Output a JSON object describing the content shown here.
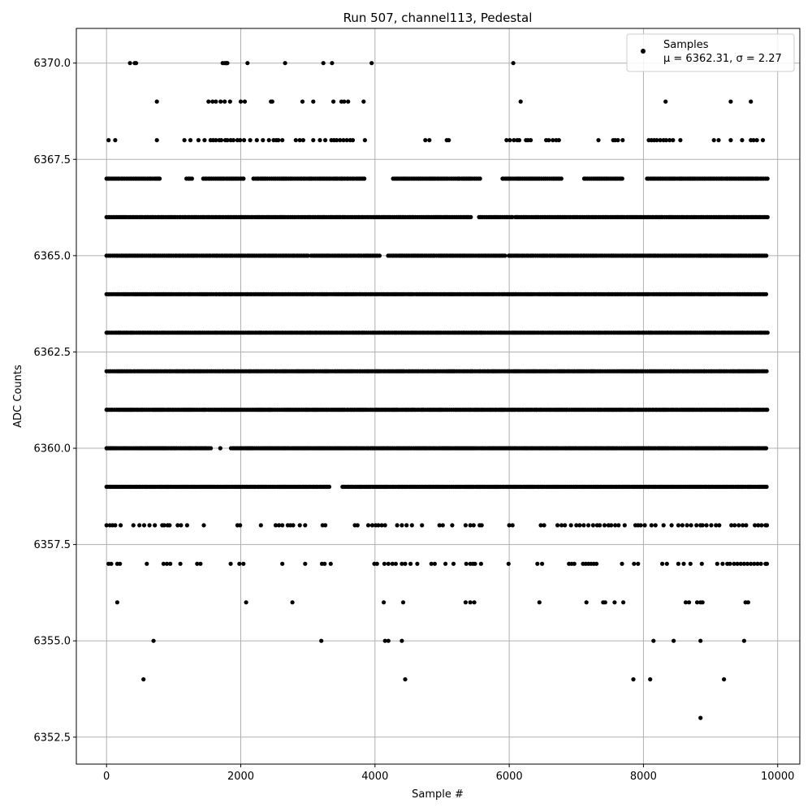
{
  "chart_data": {
    "type": "scatter",
    "title": "Run 507, channel113, Pedestal",
    "xlabel": "Sample #",
    "ylabel": "ADC Counts",
    "xlim": [
      -450,
      10330
    ],
    "ylim": [
      6351.8,
      6370.9
    ],
    "xticks": [
      0,
      2000,
      4000,
      6000,
      8000,
      10000
    ],
    "xtick_labels": [
      "0",
      "2000",
      "4000",
      "6000",
      "8000",
      "10000"
    ],
    "yticks": [
      6352.5,
      6355.0,
      6357.5,
      6360.0,
      6362.5,
      6365.0,
      6367.5,
      6370.0
    ],
    "ytick_labels": [
      "6352.5",
      "6355.0",
      "6357.5",
      "6360.0",
      "6362.5",
      "6365.0",
      "6367.5",
      "6370.0"
    ],
    "grid": true,
    "legend_position": "top-right",
    "marker_color": "#000000",
    "series": [
      {
        "name": "Samples",
        "stats_label": "μ = 6362.31, σ = 2.27",
        "x_range": [
          0,
          9850
        ],
        "levels": [
          {
            "y": 6353,
            "x": [
              8850
            ]
          },
          {
            "y": 6354,
            "x": [
              550,
              4450,
              7850,
              8100,
              9200
            ]
          },
          {
            "y": 6355,
            "x": [
              700,
              3200,
              4150,
              4200,
              4400,
              8150,
              8450,
              8850,
              9500
            ]
          },
          {
            "y": 6356,
            "x": [
              160,
              2080,
              2770,
              4130,
              4420,
              5350,
              5420,
              5480,
              6450,
              7150,
              7400,
              7430,
              7570,
              7700,
              8630,
              8680,
              8800,
              8850,
              8880,
              9520,
              9560
            ]
          },
          {
            "y": 6357,
            "x": [
              30,
              70,
              160,
              200,
              600,
              850,
              900,
              950,
              1100,
              1350,
              1400,
              1850,
              1980,
              2040,
              2620,
              2960,
              3210,
              3250,
              3340,
              3990,
              4030,
              4140,
              4200,
              4260,
              4310,
              4400,
              4450,
              4530,
              4630,
              4840,
              4890,
              5050,
              5170,
              5360,
              5420,
              5460,
              5490,
              5580,
              5990,
              6420,
              6490,
              6890,
              6930,
              6970,
              7100,
              7140,
              7180,
              7220,
              7260,
              7300,
              7680,
              7860,
              7920,
              8280,
              8350,
              8520,
              8600,
              8700,
              8870,
              9100,
              9180,
              9250,
              9290,
              9350,
              9400,
              9450,
              9500,
              9550,
              9600,
              9650,
              9700,
              9750,
              9820,
              9840
            ]
          },
          {
            "y": 6358,
            "x": [
              0,
              50,
              90,
              130,
              210,
              400,
              490,
              560,
              640,
              720,
              830,
              860,
              910,
              940,
              1060,
              1110,
              1200,
              1450,
              1950,
              1990,
              2300,
              2520,
              2570,
              2620,
              2700,
              2740,
              2780,
              2880,
              2960,
              3220,
              3260,
              3700,
              3740,
              3900,
              3960,
              4010,
              4050,
              4100,
              4150,
              4330,
              4400,
              4470,
              4550,
              4700,
              4960,
              5010,
              5150,
              5350,
              5420,
              5470,
              5560,
              5590,
              6000,
              6050,
              6470,
              6520,
              6720,
              6780,
              6830,
              6920,
              7000,
              7050,
              7110,
              7180,
              7250,
              7310,
              7350,
              7420,
              7480,
              7520,
              7580,
              7630,
              7720,
              7880,
              7920,
              7960,
              8020,
              8120,
              8180,
              8300,
              8420,
              8520,
              8580,
              8650,
              8710,
              8790,
              8850,
              8880,
              8940,
              9010,
              9080,
              9130,
              9310,
              9360,
              9420,
              9480,
              9530,
              9660,
              9710,
              9760,
              9820,
              9840
            ]
          },
          {
            "y": 6368,
            "x": [
              30,
              130,
              750,
              1160,
              1250,
              1370,
              1460,
              1550,
              1590,
              1630,
              1680,
              1710,
              1770,
              1800,
              1850,
              1890,
              1950,
              1990,
              2050,
              2140,
              2240,
              2330,
              2420,
              2490,
              2530,
              2560,
              2620,
              2820,
              2880,
              2930,
              3080,
              3180,
              3260,
              3350,
              3390,
              3430,
              3480,
              3530,
              3580,
              3630,
              3670,
              3850,
              4750,
              4810,
              5070,
              5100,
              5960,
              6010,
              6070,
              6120,
              6150,
              6250,
              6280,
              6320,
              6550,
              6590,
              6650,
              6700,
              6740,
              7330,
              7550,
              7580,
              7620,
              7690,
              8080,
              8120,
              8160,
              8200,
              8250,
              8300,
              8340,
              8390,
              8440,
              8550,
              9050,
              9120,
              9300,
              9470,
              9600,
              9640,
              9690,
              9780
            ]
          },
          {
            "y": 6369,
            "x": [
              750,
              1520,
              1580,
              1630,
              1700,
              1760,
              1840,
              2000,
              2060,
              2450,
              2470,
              2920,
              3080,
              3380,
              3500,
              3540,
              3600,
              3830,
              6170,
              8330,
              9300,
              9600
            ]
          },
          {
            "y": 6370,
            "x": [
              350,
              420,
              440,
              1730,
              1760,
              1780,
              1790,
              1800,
              2100,
              2660,
              3230,
              3360,
              3950,
              6060
            ]
          }
        ],
        "dense_levels": [
          {
            "y": 6359,
            "gaps": [
              [
                3320,
                3500
              ]
            ]
          },
          {
            "y": 6360,
            "gaps": [
              [
                1580,
                1680
              ],
              [
                1720,
                1840
              ]
            ]
          },
          {
            "y": 6361,
            "gaps": []
          },
          {
            "y": 6362,
            "gaps": []
          },
          {
            "y": 6363,
            "gaps": []
          },
          {
            "y": 6364,
            "gaps": []
          },
          {
            "y": 6365,
            "gaps": [
              [
                3020,
                3040
              ],
              [
                4080,
                4180
              ],
              [
                5950,
                5980
              ]
            ]
          },
          {
            "y": 6366,
            "gaps": [
              [
                5000,
                5020
              ],
              [
                5450,
                5550
              ],
              [
                6050,
                6080
              ]
            ]
          },
          {
            "y": 6367,
            "gaps": [
              [
                800,
                1180
              ],
              [
                1290,
                1440
              ],
              [
                2050,
                2180
              ],
              [
                3860,
                4260
              ],
              [
                5580,
                5880
              ],
              [
                6780,
                7100
              ],
              [
                7700,
                8040
              ]
            ]
          }
        ]
      }
    ]
  }
}
